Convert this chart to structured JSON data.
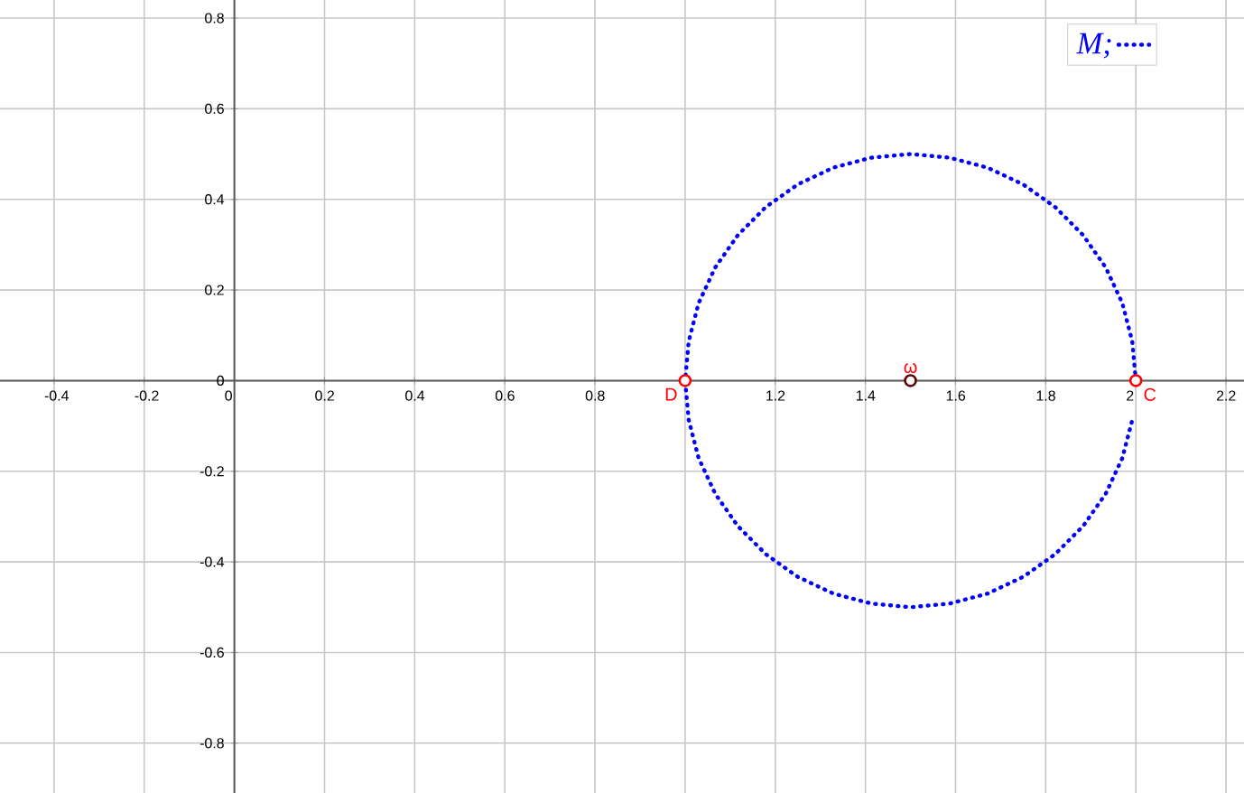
{
  "chart_data": {
    "type": "line",
    "xlim": [
      -0.52,
      2.24
    ],
    "ylim": [
      -0.91,
      0.84
    ],
    "xticks": [
      -0.4,
      -0.2,
      0,
      0.2,
      0.4,
      0.6,
      0.8,
      {
        "value": 1,
        "label": null
      },
      1.2,
      1.4,
      1.6,
      1.8,
      2,
      2.2
    ],
    "yticks": [
      -0.8,
      -0.6,
      -0.4,
      -0.2,
      0,
      0.2,
      0.4,
      0.6,
      0.8
    ],
    "grid": true,
    "legend": "top right",
    "series": [
      {
        "type": "scatter",
        "color": "#ff0000",
        "marker": "circle",
        "x": [
          1,
          2
        ],
        "values": [
          0,
          0
        ]
      },
      {
        "type": "scatter",
        "color": "#600000",
        "marker": "circle",
        "x": [
          1.5
        ],
        "values": [
          0
        ]
      },
      {
        "type": "line",
        "name": "M;",
        "color": "#0000ff",
        "marker": "none",
        "line_style": "dotted",
        "x": [
          2.0,
          1.992,
          1.97,
          1.933,
          1.883,
          1.821,
          1.75,
          1.671,
          1.587,
          1.5,
          1.413,
          1.329,
          1.25,
          1.179,
          1.117,
          1.067,
          1.03,
          1.008,
          1.0,
          1.008,
          1.03,
          1.067,
          1.117,
          1.179,
          1.25,
          1.329,
          1.413,
          1.5,
          1.587,
          1.671,
          1.75,
          1.821,
          1.883,
          1.933,
          1.97,
          1.992
        ],
        "values": [
          0,
          0.087,
          0.171,
          0.25,
          0.321,
          0.383,
          0.433,
          0.47,
          0.492,
          0.5,
          0.492,
          0.47,
          0.433,
          0.383,
          0.321,
          0.25,
          0.171,
          0.087,
          0,
          -0.087,
          -0.171,
          -0.25,
          -0.321,
          -0.383,
          -0.433,
          -0.47,
          -0.492,
          -0.5,
          -0.492,
          -0.47,
          -0.433,
          -0.383,
          -0.321,
          -0.25,
          -0.171,
          -0.087
        ]
      }
    ],
    "annotations": [
      {
        "text": "D",
        "x": 1,
        "y": 0
      },
      {
        "text": "ω",
        "x": 1.5,
        "y": 0
      },
      {
        "text": "C",
        "x": 2,
        "y": 0
      }
    ]
  }
}
